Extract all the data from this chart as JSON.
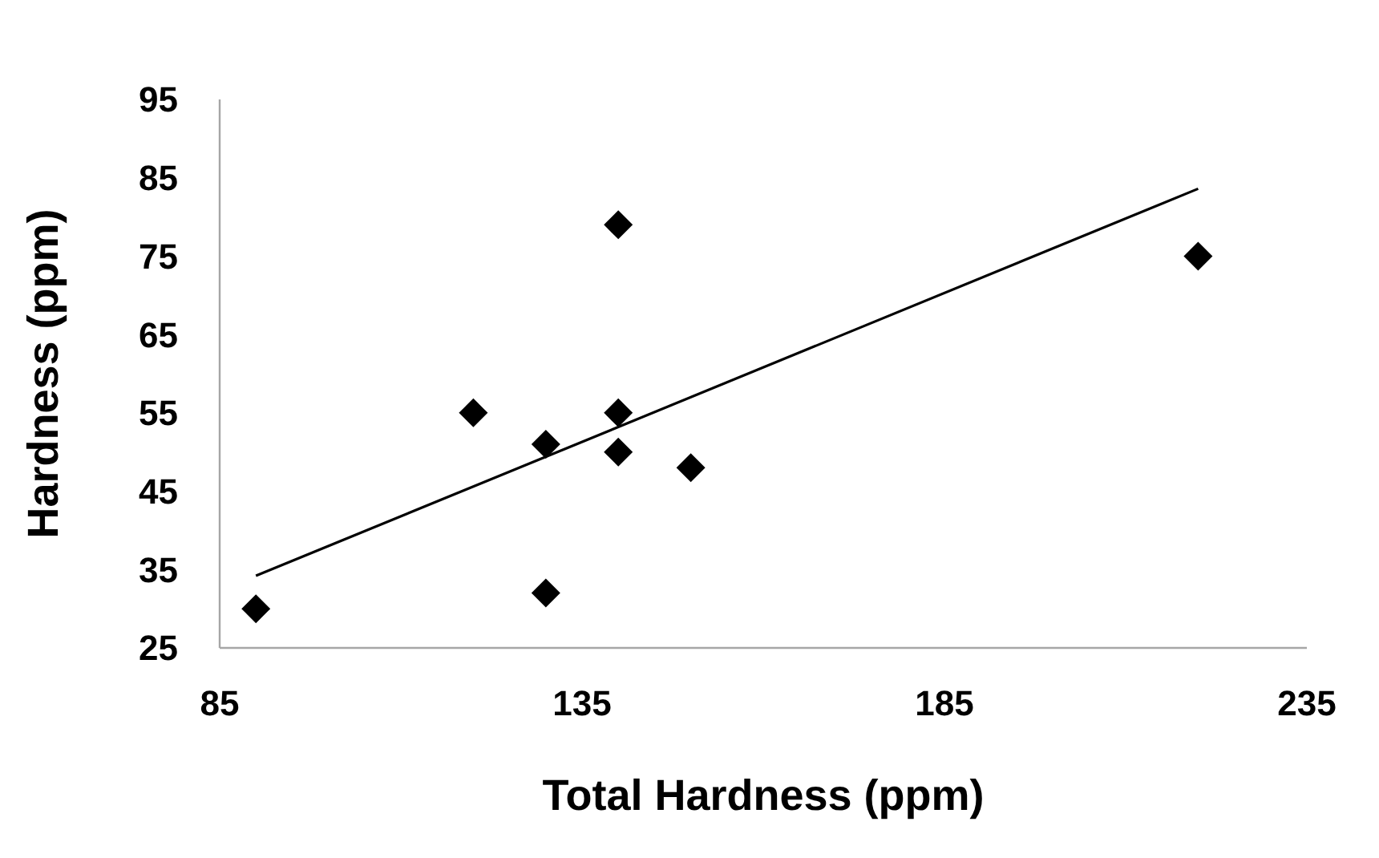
{
  "chart_data": {
    "type": "scatter",
    "xlabel": "Total Hardness (ppm)",
    "ylabel": "Hardness (ppm)",
    "xlim": [
      85,
      235
    ],
    "xticks": [
      85,
      135,
      185,
      235
    ],
    "ylim": [
      25,
      95
    ],
    "yticks": [
      25,
      35,
      45,
      55,
      65,
      75,
      85,
      95
    ],
    "grid": false,
    "marker": "diamond",
    "series": [
      {
        "color": "#000000",
        "x": [
          90,
          120,
          130,
          130,
          140,
          140,
          140,
          150,
          220
        ],
        "values": [
          30,
          55,
          51,
          32,
          79,
          55,
          50,
          48,
          75
        ]
      },
      {
        "type": "line",
        "color": "#000000",
        "marker": "none",
        "line_style": "solid",
        "x": [
          90,
          220
        ],
        "values": [
          34.2,
          83.6
        ]
      }
    ]
  }
}
